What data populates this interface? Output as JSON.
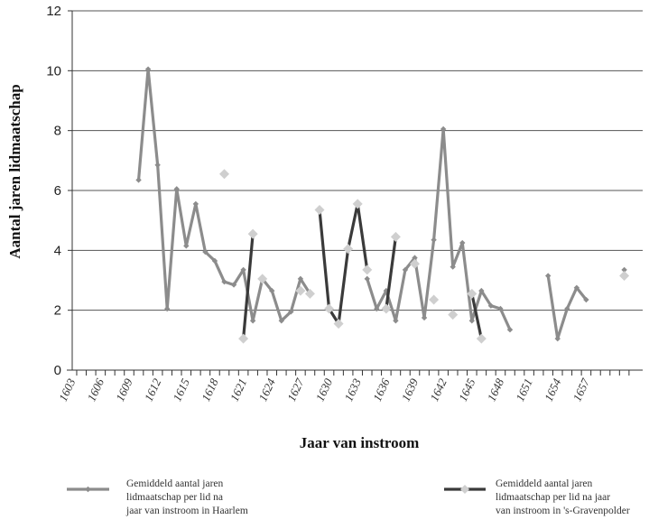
{
  "chart_data": {
    "type": "line",
    "title": "",
    "xlabel": "Jaar van instroom",
    "ylabel": "Aantal jaren lidmaatschap",
    "ylim": [
      0,
      12
    ],
    "yticks": [
      0,
      2,
      4,
      6,
      8,
      10,
      12
    ],
    "xlim": [
      1603,
      1660
    ],
    "xticks": [
      1603,
      1606,
      1609,
      1612,
      1615,
      1618,
      1621,
      1624,
      1627,
      1630,
      1633,
      1636,
      1639,
      1642,
      1645,
      1648,
      1651,
      1654,
      1657
    ],
    "grid": "horizontal",
    "legend_position": "bottom",
    "series": [
      {
        "name": "Gemiddeld aantal jaren lidmaatschap per lid na jaar van instroom in Haarlem",
        "legend_lines": [
          "Gemiddeld aantal jaren",
          "lidmaatschap per lid na",
          "jaar van instroom in Haarlem"
        ],
        "color": "#8c8c8c",
        "marker": "diamond",
        "segments": [
          [
            [
              1610,
              6.35
            ],
            [
              1611,
              10.05
            ],
            [
              1612,
              6.85
            ],
            [
              1613,
              2.05
            ],
            [
              1614,
              6.05
            ],
            [
              1615,
              4.15
            ],
            [
              1616,
              5.55
            ],
            [
              1617,
              3.95
            ],
            [
              1618,
              3.65
            ],
            [
              1619,
              2.95
            ],
            [
              1620,
              2.85
            ],
            [
              1621,
              3.35
            ],
            [
              1622,
              1.65
            ],
            [
              1623,
              3.05
            ],
            [
              1624,
              2.65
            ],
            [
              1625,
              1.65
            ],
            [
              1626,
              1.95
            ],
            [
              1627,
              3.05
            ],
            [
              1628,
              2.55
            ]
          ],
          [
            [
              1634,
              3.05
            ],
            [
              1635,
              2.05
            ],
            [
              1636,
              2.65
            ],
            [
              1637,
              1.65
            ],
            [
              1638,
              3.35
            ],
            [
              1639,
              3.75
            ],
            [
              1640,
              1.75
            ],
            [
              1641,
              4.35
            ],
            [
              1642,
              8.05
            ],
            [
              1643,
              3.45
            ],
            [
              1644,
              4.25
            ],
            [
              1645,
              1.65
            ],
            [
              1646,
              2.65
            ],
            [
              1647,
              2.15
            ],
            [
              1648,
              2.05
            ],
            [
              1649,
              1.35
            ]
          ],
          [
            [
              1653,
              3.15
            ],
            [
              1654,
              1.05
            ],
            [
              1655,
              2.05
            ],
            [
              1656,
              2.75
            ],
            [
              1657,
              2.35
            ]
          ],
          [
            [
              1661,
              3.35
            ]
          ]
        ]
      },
      {
        "name": "Gemiddeld aantal jaren lidmaatschap per lid na jaar van instroom in 's-Gravenpolder",
        "legend_lines": [
          "Gemiddeld aantal jaren",
          "lidmaatschap per lid na jaar",
          "van instroom in 's-Gravenpolder"
        ],
        "color": "#3a3a3a",
        "marker_color": "#cfcfcf",
        "marker": "diamond",
        "segments": [
          [
            [
              1621,
              1.05
            ],
            [
              1622,
              4.55
            ]
          ],
          [
            [
              1629,
              5.35
            ],
            [
              1630,
              2.05
            ],
            [
              1631,
              1.55
            ],
            [
              1632,
              4.05
            ],
            [
              1633,
              5.55
            ],
            [
              1634,
              3.35
            ]
          ],
          [
            [
              1636,
              2.05
            ],
            [
              1637,
              4.45
            ]
          ],
          [
            [
              1645,
              2.55
            ],
            [
              1646,
              1.05
            ]
          ]
        ],
        "isolated_points": [
          [
            1619,
            6.55
          ],
          [
            1623,
            3.05
          ],
          [
            1627,
            2.65
          ],
          [
            1628,
            2.55
          ],
          [
            1639,
            3.55
          ],
          [
            1641,
            2.35
          ],
          [
            1643,
            1.85
          ],
          [
            1661,
            3.15
          ]
        ]
      }
    ]
  }
}
